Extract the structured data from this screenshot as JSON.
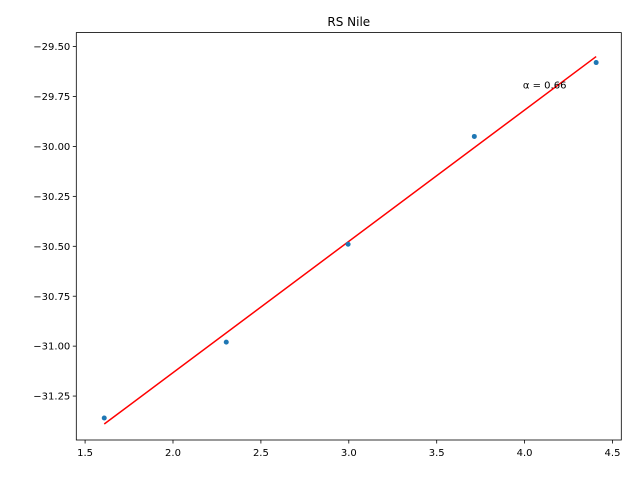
{
  "chart_data": {
    "type": "scatter",
    "title": "RS Nile",
    "xlabel": "",
    "ylabel": "",
    "xlim": [
      1.45,
      4.55
    ],
    "ylim": [
      -31.47,
      -29.43
    ],
    "x_ticks": [
      1.5,
      2.0,
      2.5,
      3.0,
      3.5,
      4.0,
      4.5
    ],
    "x_tick_labels": [
      "1.5",
      "2.0",
      "2.5",
      "3.0",
      "3.5",
      "4.0",
      "4.5"
    ],
    "y_ticks": [
      -29.5,
      -29.75,
      -30.0,
      -30.25,
      -30.5,
      -30.75,
      -31.0,
      -31.25
    ],
    "y_tick_labels": [
      "−29.50",
      "−29.75",
      "−30.00",
      "−30.25",
      "−30.50",
      "−30.75",
      "−31.00",
      "−31.25"
    ],
    "grid": false,
    "series": [
      {
        "kind": "points",
        "color": "#1f77b4",
        "x": [
          1.609,
          2.303,
          2.996,
          3.714,
          4.407
        ],
        "y": [
          -31.36,
          -30.98,
          -30.49,
          -29.95,
          -29.58
        ]
      },
      {
        "kind": "fit-line",
        "color": "#ff0000",
        "x": [
          1.609,
          4.407
        ],
        "y": [
          -31.39,
          -29.55
        ]
      }
    ],
    "annotations": [
      {
        "text": "α = 0.66",
        "x": 3.99,
        "y": -29.69
      }
    ]
  }
}
